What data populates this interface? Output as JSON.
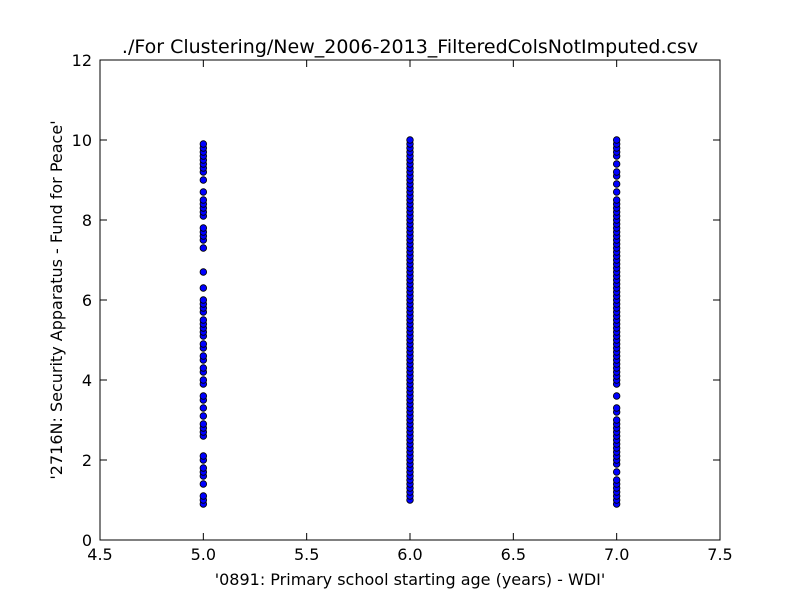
{
  "chart_data": {
    "type": "scatter",
    "title": "./For Clustering/New_2006-2013_FilteredColsNotImputed.csv",
    "xlabel": "'0891: Primary school starting age  (years) - WDI'",
    "ylabel": "'2716N: Security Apparatus - Fund for Peace'",
    "xlim": [
      4.5,
      7.5
    ],
    "ylim": [
      0,
      12
    ],
    "x_ticks": [
      "4.5",
      "5.0",
      "5.5",
      "6.0",
      "6.5",
      "7.0",
      "7.5"
    ],
    "y_ticks": [
      "0",
      "2",
      "4",
      "6",
      "8",
      "10",
      "12"
    ],
    "grid": false,
    "marker_color": "#0000ff",
    "marker_edge_color": "#000000",
    "series": [
      {
        "x": 5.0,
        "y": [
          0.9,
          1.0,
          1.1,
          1.4,
          1.6,
          1.7,
          1.8,
          2.0,
          2.1,
          2.6,
          2.7,
          2.8,
          2.9,
          3.1,
          3.3,
          3.5,
          3.6,
          3.9,
          4.0,
          4.2,
          4.3,
          4.5,
          4.6,
          4.8,
          4.9,
          5.1,
          5.2,
          5.3,
          5.4,
          5.5,
          5.7,
          5.8,
          5.9,
          6.0,
          6.3,
          6.7,
          7.3,
          7.5,
          7.6,
          7.7,
          7.8,
          8.1,
          8.2,
          8.3,
          8.4,
          8.5,
          8.7,
          9.0,
          9.2,
          9.3,
          9.4,
          9.5,
          9.6,
          9.7,
          9.8,
          9.9
        ]
      },
      {
        "x": 6.0,
        "y": [
          1.0,
          1.1,
          1.2,
          1.3,
          1.4,
          1.5,
          1.6,
          1.7,
          1.8,
          1.9,
          2.0,
          2.1,
          2.2,
          2.3,
          2.4,
          2.5,
          2.6,
          2.7,
          2.8,
          2.9,
          3.0,
          3.1,
          3.2,
          3.3,
          3.4,
          3.5,
          3.6,
          3.7,
          3.8,
          3.9,
          4.0,
          4.1,
          4.2,
          4.3,
          4.4,
          4.5,
          4.6,
          4.7,
          4.8,
          4.9,
          5.0,
          5.1,
          5.2,
          5.3,
          5.4,
          5.5,
          5.6,
          5.7,
          5.8,
          5.9,
          6.0,
          6.1,
          6.2,
          6.3,
          6.4,
          6.5,
          6.6,
          6.7,
          6.8,
          6.9,
          7.0,
          7.1,
          7.2,
          7.3,
          7.4,
          7.5,
          7.6,
          7.7,
          7.8,
          7.9,
          8.0,
          8.1,
          8.2,
          8.3,
          8.4,
          8.5,
          8.6,
          8.7,
          8.8,
          8.9,
          9.0,
          9.1,
          9.2,
          9.3,
          9.4,
          9.5,
          9.6,
          9.7,
          9.8,
          9.9,
          10.0
        ]
      },
      {
        "x": 7.0,
        "y": [
          0.9,
          1.0,
          1.1,
          1.2,
          1.3,
          1.4,
          1.5,
          1.7,
          1.9,
          2.0,
          2.1,
          2.2,
          2.3,
          2.4,
          2.5,
          2.6,
          2.7,
          2.8,
          2.9,
          3.0,
          3.2,
          3.3,
          3.6,
          3.9,
          4.0,
          4.1,
          4.2,
          4.3,
          4.4,
          4.5,
          4.6,
          4.7,
          4.8,
          4.9,
          5.0,
          5.1,
          5.2,
          5.3,
          5.4,
          5.5,
          5.6,
          5.7,
          5.8,
          5.9,
          6.0,
          6.1,
          6.2,
          6.3,
          6.4,
          6.5,
          6.6,
          6.7,
          6.8,
          6.9,
          7.0,
          7.1,
          7.2,
          7.3,
          7.4,
          7.5,
          7.6,
          7.7,
          7.8,
          7.9,
          8.0,
          8.1,
          8.2,
          8.3,
          8.4,
          8.5,
          8.7,
          8.9,
          9.1,
          9.2,
          9.4,
          9.6,
          9.7,
          9.8,
          9.9,
          10.0
        ]
      }
    ]
  }
}
